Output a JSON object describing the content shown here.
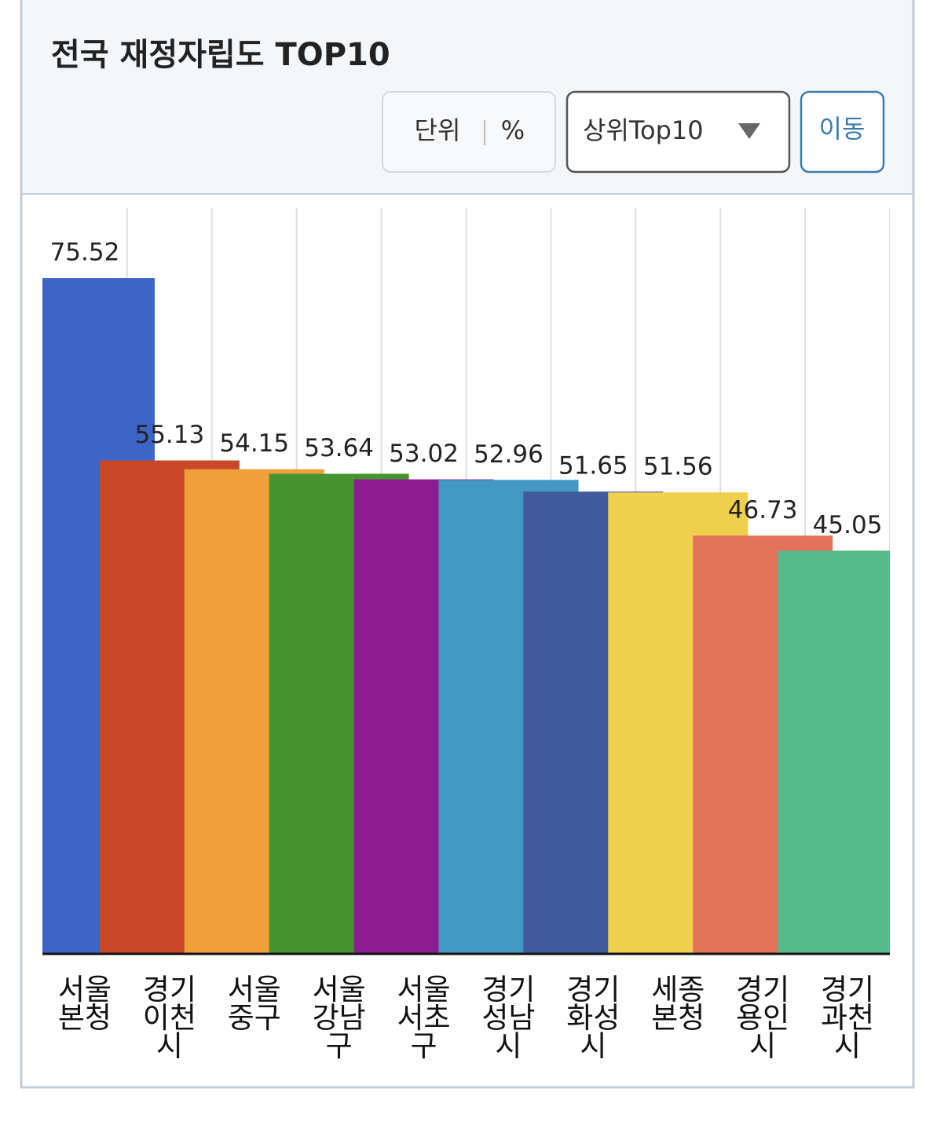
{
  "chart_data": {
    "type": "bar",
    "title": "전국 재정자립도 TOP10",
    "categories": [
      "서울본청",
      "경기이천시",
      "서울중구",
      "서울강남구",
      "서울서초구",
      "경기성남시",
      "경기화성시",
      "세종본청",
      "경기용인시",
      "경기과천시"
    ],
    "values": [
      75.52,
      55.13,
      54.15,
      53.64,
      53.02,
      52.96,
      51.65,
      51.56,
      46.73,
      45.05
    ],
    "colors": [
      "#3d65c8",
      "#c94827",
      "#f0a03a",
      "#46932f",
      "#8c1c91",
      "#4397c3",
      "#415a9c",
      "#f0cf4c",
      "#e4715a",
      "#55bb8a"
    ],
    "ylim": [
      0,
      80
    ]
  },
  "controls": {
    "unit_label": "단위",
    "unit_value": "%",
    "dropdown": "상위Top10",
    "button": "이동"
  }
}
